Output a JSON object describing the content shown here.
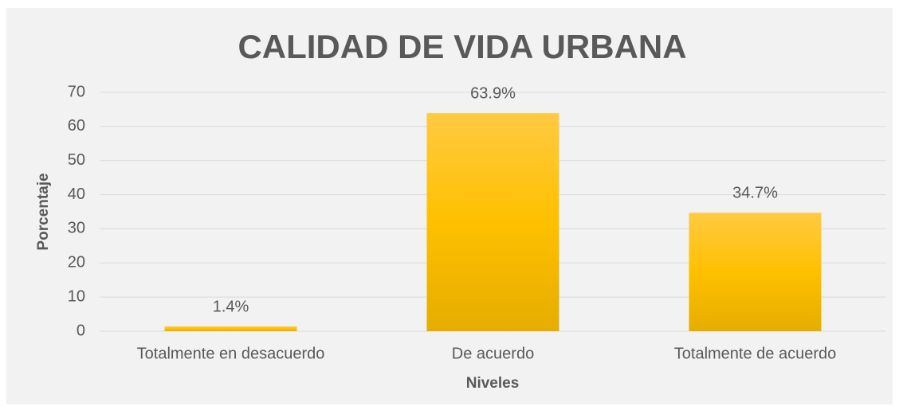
{
  "chart_data": {
    "type": "bar",
    "title": "CALIDAD DE VIDA URBANA",
    "categories": [
      "Totalmente en desacuerdo",
      "De acuerdo",
      "Totalmente de acuerdo"
    ],
    "values": [
      1.4,
      63.9,
      34.7
    ],
    "value_labels": [
      "1.4%",
      "63.9%",
      "34.7%"
    ],
    "color": "#ffc000",
    "ylim": [
      0,
      70
    ],
    "yticks": [
      0,
      10,
      20,
      30,
      40,
      50,
      60,
      70
    ],
    "grid": true,
    "x_label": "Niveles",
    "y_label": "Porcentaje"
  }
}
